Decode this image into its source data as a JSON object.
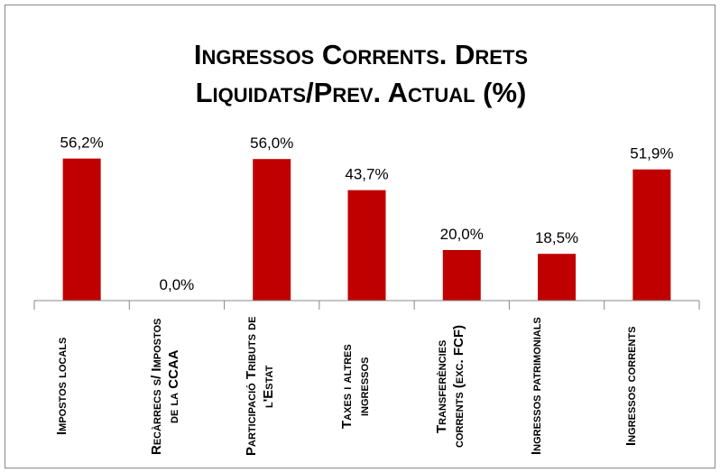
{
  "chart_data": {
    "type": "bar",
    "title": "Ingressos Corrents. Drets Liquidats/Prev. Actual (%)",
    "categories": [
      "Impostos locals",
      "Recàrrecs s/ Impostos de la CCAA",
      "Participació Tributs de l'Estat",
      "Taxes i altres ingressos",
      "Transferències corrents (exc. FCF)",
      "Ingressos patrimonials",
      "Ingressos corrents"
    ],
    "values": [
      56.2,
      0.0,
      56.0,
      43.7,
      20.0,
      18.5,
      51.9
    ],
    "value_labels": [
      "56,2%",
      "0,0%",
      "56,0%",
      "43,7%",
      "20,0%",
      "18,5%",
      "51,9%"
    ],
    "color": "#c00000",
    "ylim": [
      0,
      60
    ]
  }
}
